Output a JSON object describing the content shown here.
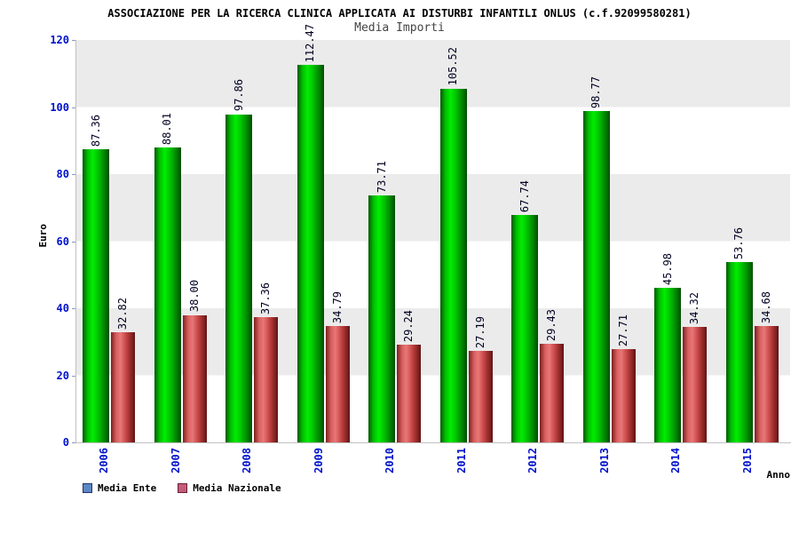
{
  "header": {
    "title": "ASSOCIAZIONE PER LA RICERCA CLINICA APPLICATA AI DISTURBI INFANTILI ONLUS (c.f.92099580281)",
    "subtitle": "Media Importi"
  },
  "chart_data": {
    "type": "bar",
    "title": "Media Importi",
    "xlabel": "Anno",
    "ylabel": "Euro",
    "ylim": [
      0,
      120
    ],
    "yticks": [
      0,
      20,
      40,
      60,
      80,
      100,
      120
    ],
    "grid": "striped-horizontal-bands",
    "legend_position": "bottom-left",
    "value_label_decimals": 2,
    "categories": [
      "2006",
      "2007",
      "2008",
      "2009",
      "2010",
      "2011",
      "2012",
      "2013",
      "2014",
      "2015"
    ],
    "series": [
      {
        "name": "Media Ente",
        "bar_color": "#00cc00",
        "legend_color": "#5b87c5",
        "legend_border": "#223366",
        "values": [
          87.36,
          88.01,
          97.86,
          112.47,
          73.71,
          105.52,
          67.74,
          98.77,
          45.98,
          53.76
        ]
      },
      {
        "name": "Media Nazionale",
        "bar_color": "#cc4455",
        "legend_color": "#c55b7a",
        "legend_border": "#662233",
        "values": [
          32.82,
          38.0,
          37.36,
          34.79,
          29.24,
          27.19,
          29.43,
          27.71,
          34.32,
          34.68
        ]
      }
    ],
    "colors": {
      "tick_label": "#0011cc",
      "band_gray": "#ebebeb",
      "axis_line": "#c0c0c0",
      "value_label": "#000022"
    }
  }
}
